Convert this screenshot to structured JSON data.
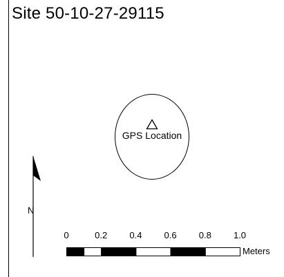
{
  "map": {
    "title": "Site 50-10-27-29115",
    "feature": {
      "label": "GPS Location",
      "icon": "triangle-marker-icon"
    },
    "north_arrow": {
      "label": "N",
      "icon": "north-arrow-icon"
    },
    "scale_bar": {
      "ticks": [
        "0",
        "0.2",
        "0.4",
        "0.6",
        "0.8",
        "1.0"
      ],
      "tick_values": [
        0,
        0.2,
        0.4,
        0.6,
        0.8,
        1.0
      ],
      "unit": "Meters",
      "segments": [
        {
          "from": 0.0,
          "to": 0.1,
          "fill": "black"
        },
        {
          "from": 0.1,
          "to": 0.2,
          "fill": "white"
        },
        {
          "from": 0.2,
          "to": 0.4,
          "fill": "black"
        },
        {
          "from": 0.4,
          "to": 0.6,
          "fill": "white"
        },
        {
          "from": 0.6,
          "to": 0.8,
          "fill": "black"
        },
        {
          "from": 0.8,
          "to": 1.0,
          "fill": "white"
        }
      ]
    }
  }
}
